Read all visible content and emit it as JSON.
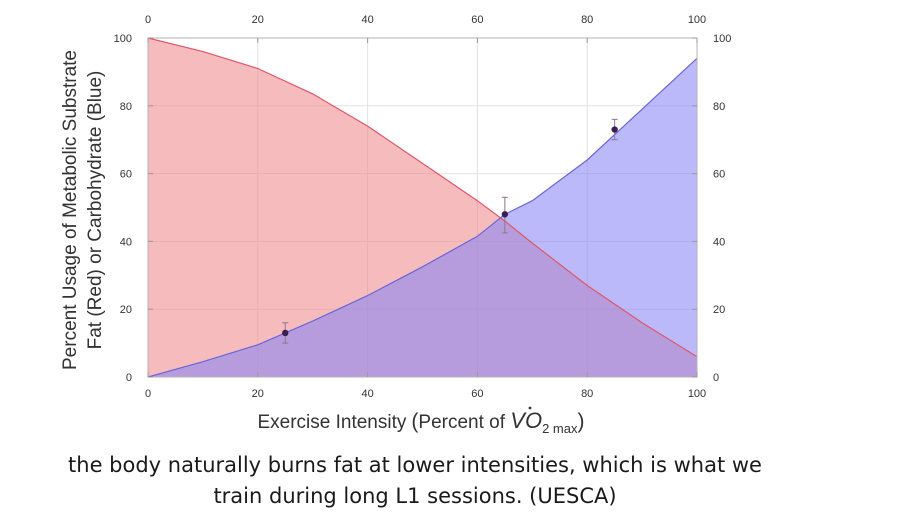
{
  "chart_data": {
    "type": "area",
    "title": "",
    "ylabel_line1": "Percent Usage of Metabolic Substrate",
    "ylabel_line2": "Fat (Red) or Carbohydrate (Blue)",
    "xlabel": {
      "prefix": "Exercise Intensity",
      "paren_text": "Percent of ",
      "vo2_v": "V",
      "vo2_o": "O",
      "vo2_sub": "2 max"
    },
    "xlim": [
      0,
      100
    ],
    "ylim": [
      0,
      100
    ],
    "x_ticks_bottom": [
      0,
      20,
      40,
      60,
      80,
      100
    ],
    "x_ticks_top": [
      0,
      20,
      40,
      60,
      80,
      100
    ],
    "y_ticks_left": [
      0,
      20,
      40,
      60,
      80,
      100
    ],
    "y_ticks_right": [
      0,
      20,
      40,
      60,
      80,
      100
    ],
    "grid": true,
    "series": [
      {
        "name": "Fat (Red)",
        "color": "#f08a8e",
        "line_color": "#e0566a",
        "x": [
          0,
          10,
          20,
          30,
          40,
          50,
          60,
          65,
          70,
          80,
          90,
          100
        ],
        "y": [
          100,
          96,
          91,
          83.5,
          74,
          63,
          52,
          46,
          39.5,
          27,
          16,
          6
        ]
      },
      {
        "name": "Carbohydrate (Blue)",
        "color": "#8a86f5",
        "line_color": "#6a66d8",
        "x": [
          0,
          10,
          20,
          30,
          40,
          50,
          60,
          65,
          70,
          80,
          90,
          100
        ],
        "y": [
          0,
          4.5,
          9.5,
          16.5,
          24,
          32.5,
          41.5,
          48,
          52,
          64,
          79,
          94
        ]
      }
    ],
    "points": [
      {
        "x": 25,
        "y": 13,
        "err_low": 10,
        "err_high": 16
      },
      {
        "x": 65,
        "y": 48,
        "err_low": 42.5,
        "err_high": 53
      },
      {
        "x": 85,
        "y": 73,
        "err_low": 70,
        "err_high": 76
      }
    ]
  },
  "caption": {
    "line1": "the body naturally burns fat at lower intensities, which is what we",
    "line2": "train during long L1 sessions. (UESCA)"
  }
}
